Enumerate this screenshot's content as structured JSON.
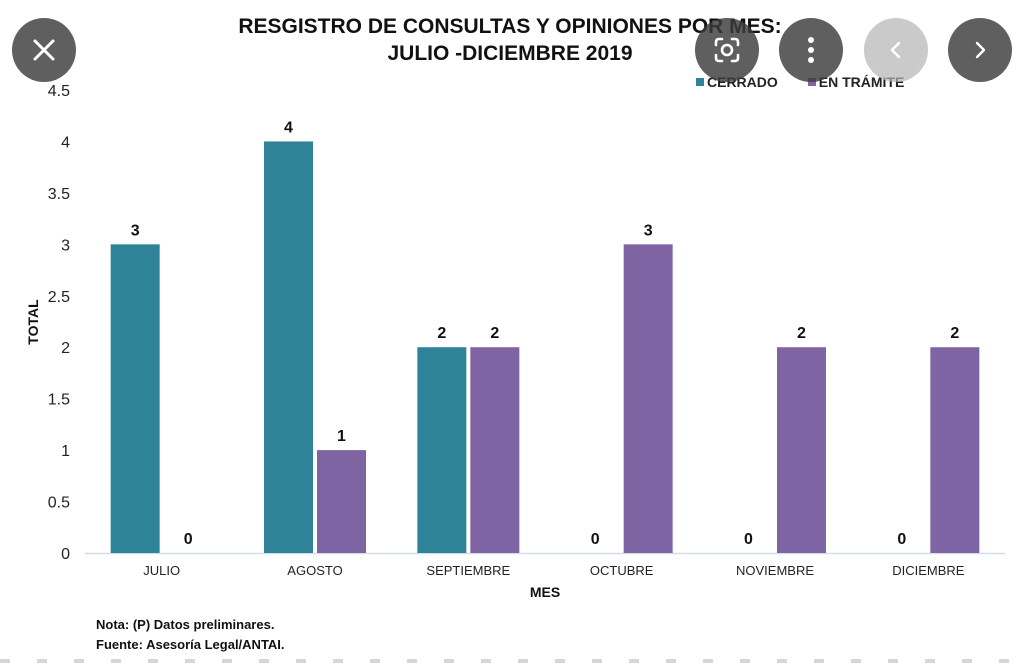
{
  "overlay": {
    "buttons": [
      {
        "name": "close-icon",
        "label": "Close"
      },
      {
        "name": "lens-icon",
        "label": "Search image"
      },
      {
        "name": "more-vert-icon",
        "label": "More options"
      },
      {
        "name": "chevron-left-icon",
        "label": "Previous"
      },
      {
        "name": "chevron-right-icon",
        "label": "Next"
      }
    ]
  },
  "notes": {
    "line1": "Nota: (P) Datos preliminares.",
    "line2": "Fuente: Asesoría Legal/ANTAI."
  },
  "chart_data": {
    "type": "bar",
    "title_line1": "RESGISTRO DE CONSULTAS Y OPINIONES POR MES:",
    "title_line2": "JULIO -DICIEMBRE 2019",
    "xlabel": "MES",
    "ylabel": "TOTAL",
    "ylim": [
      0,
      4.5
    ],
    "yticks": [
      "0",
      "0.5",
      "1",
      "1.5",
      "2",
      "2.5",
      "3",
      "3.5",
      "4",
      "4.5"
    ],
    "grid": false,
    "legend_position": "top-right",
    "categories": [
      "JULIO",
      "AGOSTO",
      "SEPTIEMBRE",
      "OCTUBRE",
      "NOVIEMBRE",
      "DICIEMBRE"
    ],
    "series": [
      {
        "name": "CERRADO",
        "color": "#2e8399",
        "values": [
          3,
          4,
          2,
          0,
          0,
          0
        ]
      },
      {
        "name": "EN TRÁMITE",
        "color": "#7f64a4",
        "values": [
          0,
          1,
          2,
          3,
          2,
          2
        ]
      }
    ]
  }
}
